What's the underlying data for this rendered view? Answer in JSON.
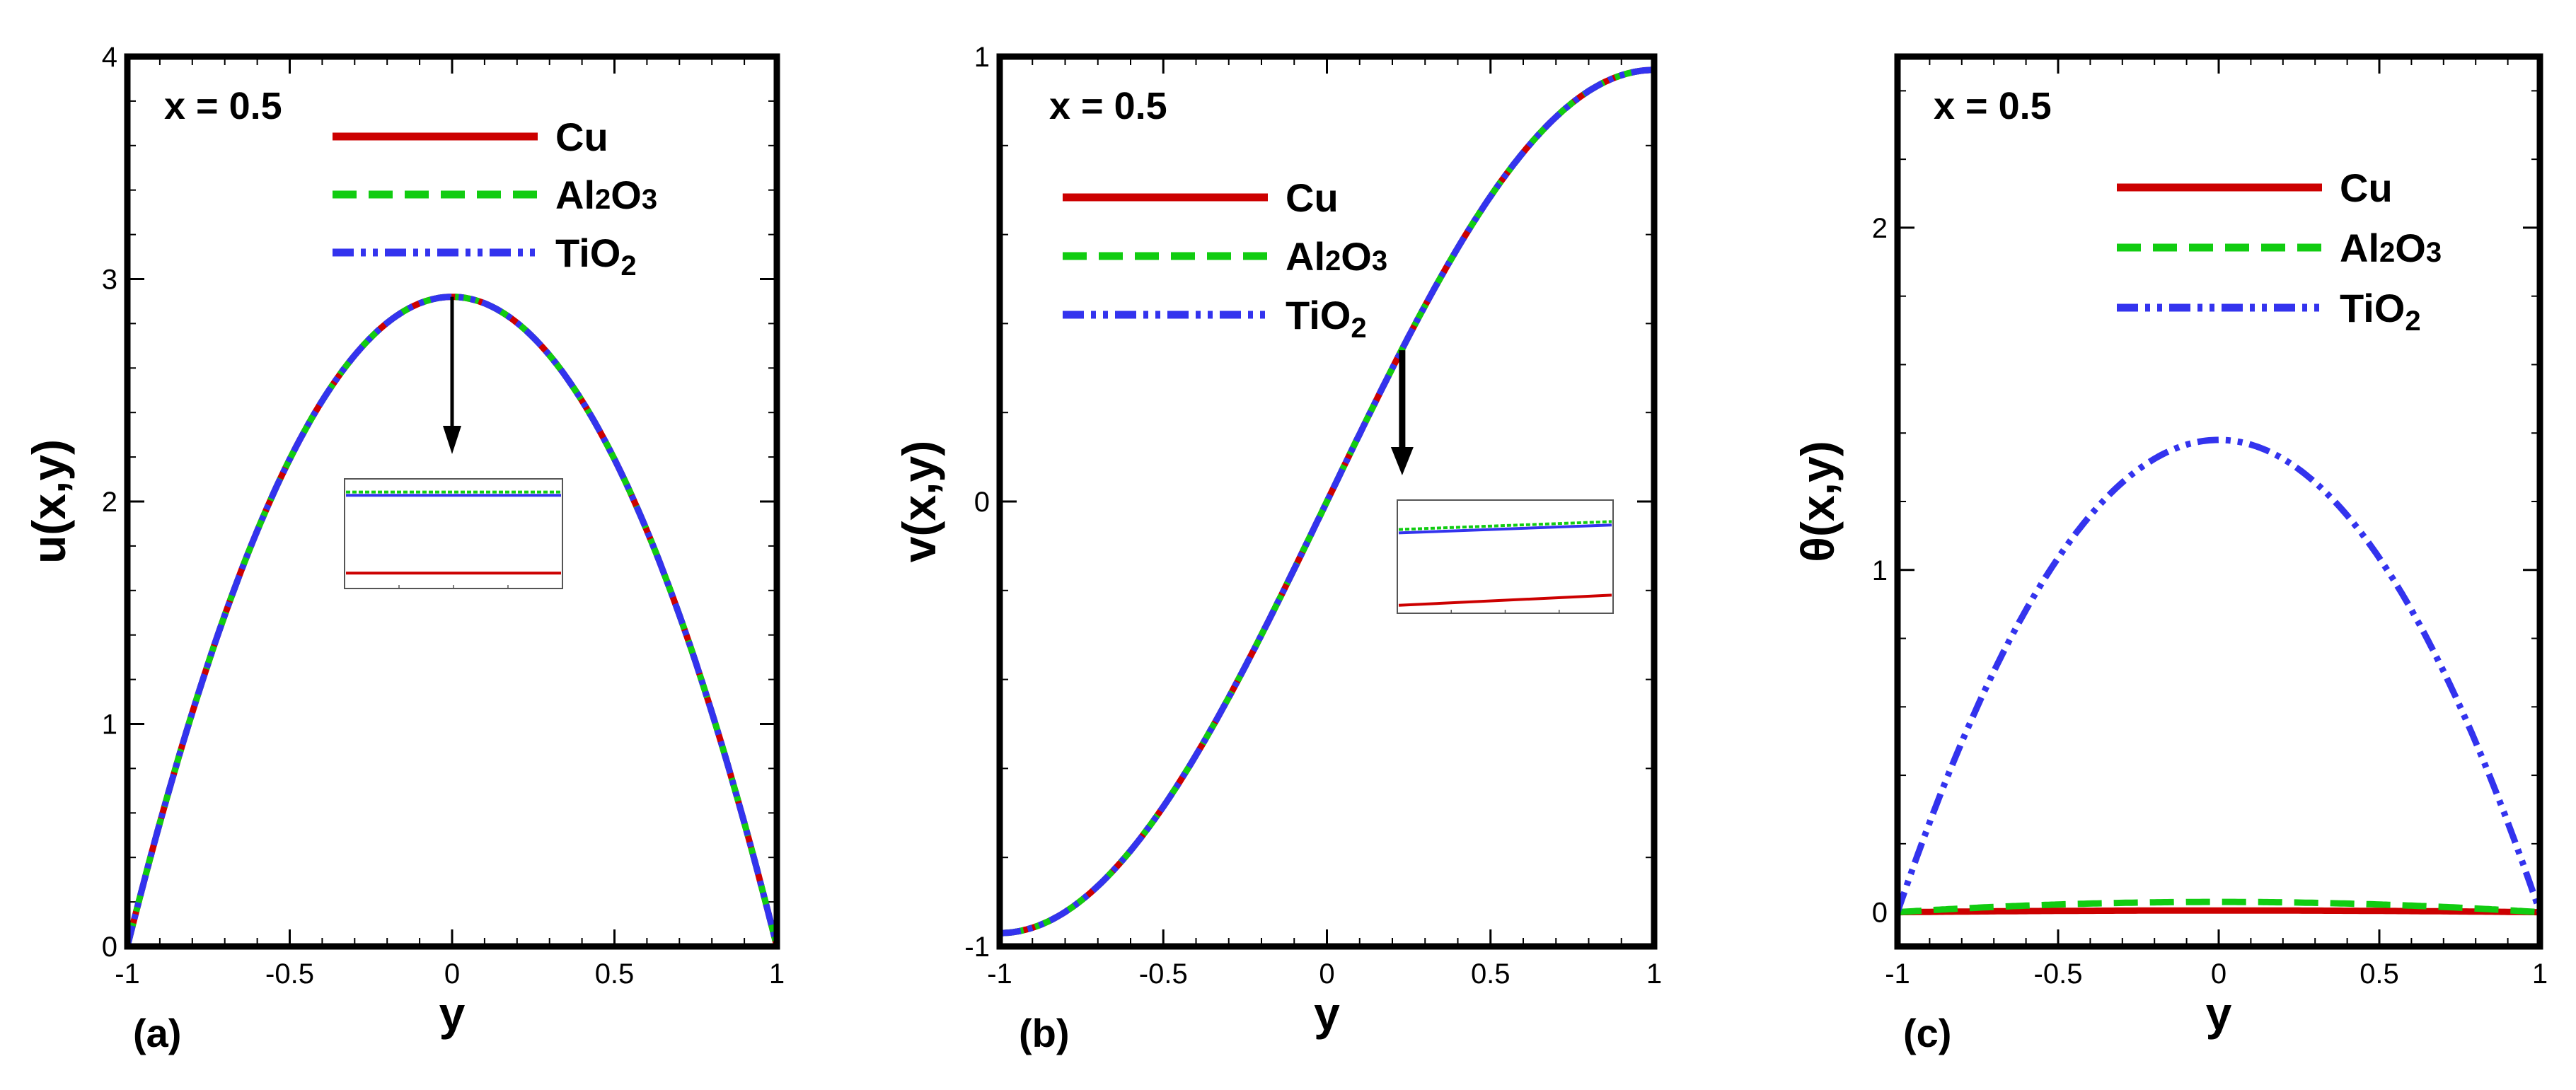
{
  "chart_data": [
    {
      "type": "line",
      "panel_label": "(a)",
      "annotation": "x = 0.5",
      "xlabel": "y",
      "ylabel": "u(x,y)",
      "xlim": [
        -1,
        1
      ],
      "ylim": [
        0,
        4
      ],
      "xticks": [
        -1,
        -0.5,
        0,
        0.5,
        1
      ],
      "xtick_labels": [
        "-1",
        "-0.5",
        "0",
        "0.5",
        "1"
      ],
      "yticks": [
        0,
        1,
        2,
        3,
        4
      ],
      "ytick_labels": [
        "0",
        "1",
        "2",
        "3",
        "4"
      ],
      "legend_position": "top-center",
      "curve_model": "peak*(1-y^2)",
      "curve_params": {
        "peak": 2.92
      },
      "series": [
        {
          "name": "Cu",
          "color": "#cc0000",
          "style": "solid",
          "x": [
            -1,
            -0.75,
            -0.5,
            -0.25,
            0,
            0.25,
            0.5,
            0.75,
            1
          ],
          "y": [
            0,
            1.28,
            2.19,
            2.74,
            2.92,
            2.74,
            2.19,
            1.28,
            0
          ]
        },
        {
          "name": "Al2O3",
          "color": "#11cc11",
          "style": "dash",
          "x": [
            -1,
            -0.75,
            -0.5,
            -0.25,
            0,
            0.25,
            0.5,
            0.75,
            1
          ],
          "y": [
            0,
            1.28,
            2.19,
            2.74,
            2.92,
            2.74,
            2.19,
            1.28,
            0
          ]
        },
        {
          "name": "TiO2",
          "color": "#3333ee",
          "style": "dashdotdot",
          "x": [
            -1,
            -0.75,
            -0.5,
            -0.25,
            0,
            0.25,
            0.5,
            0.75,
            1
          ],
          "y": [
            0,
            1.28,
            2.19,
            2.74,
            2.92,
            2.74,
            2.19,
            1.28,
            0
          ]
        }
      ],
      "zoom_arrow_at": [
        0,
        2.92
      ],
      "inset": {
        "lines": [
          {
            "series": "Al2O3",
            "level": 0.88,
            "slope": 0
          },
          {
            "series": "TiO2",
            "level": 0.85,
            "slope": 0
          },
          {
            "series": "Cu",
            "level": 0.14,
            "slope": 0
          }
        ]
      }
    },
    {
      "type": "line",
      "panel_label": "(b)",
      "annotation": "x = 0.5",
      "xlabel": "y",
      "ylabel": "v(x,y)",
      "xlim": [
        -1,
        1
      ],
      "ylim": [
        -1,
        1
      ],
      "xticks": [
        -1,
        -0.5,
        0,
        0.5,
        1
      ],
      "xtick_labels": [
        "-1",
        "-0.5",
        "0",
        "0.5",
        "1"
      ],
      "yticks": [
        -1,
        0,
        1
      ],
      "ytick_labels": [
        "-1",
        "0",
        "1"
      ],
      "legend_position": "top-left",
      "curve_model": "amp*sin(pi*y/2)",
      "curve_params": {
        "amp": 0.97
      },
      "series": [
        {
          "name": "Cu",
          "color": "#cc0000",
          "style": "solid",
          "x": [
            -1,
            -0.75,
            -0.5,
            -0.25,
            0,
            0.25,
            0.5,
            0.75,
            1
          ],
          "y": [
            -0.97,
            -0.9,
            -0.69,
            -0.37,
            0,
            0.37,
            0.69,
            0.9,
            0.97
          ]
        },
        {
          "name": "Al2O3",
          "color": "#11cc11",
          "style": "dash",
          "x": [
            -1,
            -0.75,
            -0.5,
            -0.25,
            0,
            0.25,
            0.5,
            0.75,
            1
          ],
          "y": [
            -0.97,
            -0.9,
            -0.69,
            -0.37,
            0,
            0.37,
            0.69,
            0.9,
            0.97
          ]
        },
        {
          "name": "TiO2",
          "color": "#3333ee",
          "style": "dashdotdot",
          "x": [
            -1,
            -0.75,
            -0.5,
            -0.25,
            0,
            0.25,
            0.5,
            0.75,
            1
          ],
          "y": [
            -0.97,
            -0.9,
            -0.69,
            -0.37,
            0,
            0.37,
            0.69,
            0.9,
            0.97
          ]
        }
      ],
      "zoom_arrow_at": [
        0.23,
        0.34
      ],
      "inset": {
        "lines": [
          {
            "series": "Al2O3",
            "level": 0.74,
            "slope": 0.07
          },
          {
            "series": "TiO2",
            "level": 0.71,
            "slope": 0.07
          },
          {
            "series": "Cu",
            "level": 0.07,
            "slope": 0.09
          }
        ]
      }
    },
    {
      "type": "line",
      "panel_label": "(c)",
      "annotation": "x = 0.5",
      "xlabel": "y",
      "ylabel": "θ(x,y)",
      "xlim": [
        -1,
        1
      ],
      "ylim": [
        -0.1,
        2.5
      ],
      "xticks": [
        -1,
        -0.5,
        0,
        0.5,
        1
      ],
      "xtick_labels": [
        "-1",
        "-0.5",
        "0",
        "0.5",
        "1"
      ],
      "yticks": [
        0,
        1,
        2
      ],
      "ytick_labels": [
        "0",
        "1",
        "2"
      ],
      "legend_position": "top-right",
      "curve_model": "peak*(1-y^2)",
      "series": [
        {
          "name": "Cu",
          "color": "#cc0000",
          "style": "solid",
          "peak": 0.005,
          "x": [
            -1,
            -0.5,
            0,
            0.5,
            1
          ],
          "y": [
            0,
            0.004,
            0.005,
            0.004,
            0
          ]
        },
        {
          "name": "Al2O3",
          "color": "#11cc11",
          "style": "dash",
          "peak": 0.03,
          "x": [
            -1,
            -0.5,
            0,
            0.5,
            1
          ],
          "y": [
            0,
            0.023,
            0.03,
            0.023,
            0
          ]
        },
        {
          "name": "TiO2",
          "color": "#3333ee",
          "style": "dashdotdot",
          "peak": 1.38,
          "x": [
            -1,
            -0.75,
            -0.5,
            -0.25,
            0,
            0.25,
            0.5,
            0.75,
            1
          ],
          "y": [
            0,
            0.6,
            1.04,
            1.29,
            1.38,
            1.29,
            1.04,
            0.6,
            0
          ]
        }
      ]
    }
  ]
}
